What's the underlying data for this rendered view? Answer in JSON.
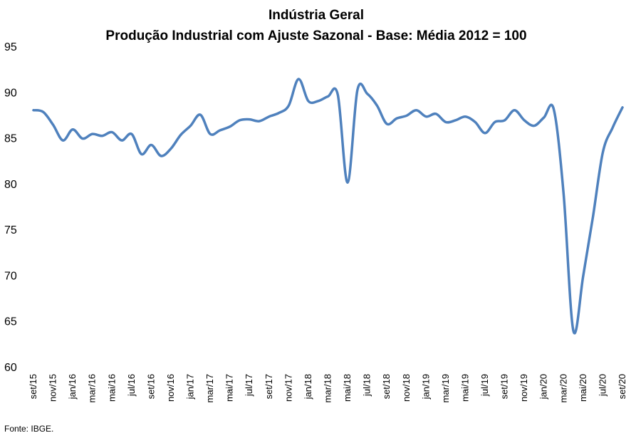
{
  "chart_data": {
    "type": "line",
    "title": "Indústria Geral",
    "subtitle": "Produção Industrial com Ajuste Sazonal - Base: Média 2012 = 100",
    "xlabel": "",
    "ylabel": "",
    "ylim": [
      60,
      95
    ],
    "yticks": [
      60,
      65,
      70,
      75,
      80,
      85,
      90,
      95
    ],
    "grid": false,
    "legend": "none",
    "line_color": "#4F81BD",
    "x_labels": [
      "set/15",
      "nov/15",
      "jan/16",
      "mar/16",
      "mai/16",
      "jul/16",
      "set/16",
      "nov/16",
      "jan/17",
      "mar/17",
      "mai/17",
      "jul/17",
      "set/17",
      "nov/17",
      "jan/18",
      "mar/18",
      "mai/18",
      "jul/18",
      "set/18",
      "nov/18",
      "jan/19",
      "mar/19",
      "mai/19",
      "jul/19",
      "set/19",
      "nov/19",
      "jan/20",
      "mar/20",
      "mai/20",
      "jul/20",
      "set/20"
    ],
    "x": [
      "set/15",
      "out/15",
      "nov/15",
      "dez/15",
      "jan/16",
      "fev/16",
      "mar/16",
      "abr/16",
      "mai/16",
      "jun/16",
      "jul/16",
      "ago/16",
      "set/16",
      "out/16",
      "nov/16",
      "dez/16",
      "jan/17",
      "fev/17",
      "mar/17",
      "abr/17",
      "mai/17",
      "jun/17",
      "jul/17",
      "ago/17",
      "set/17",
      "out/17",
      "nov/17",
      "dez/17",
      "jan/18",
      "fev/18",
      "mar/18",
      "abr/18",
      "mai/18",
      "jun/18",
      "jul/18",
      "ago/18",
      "set/18",
      "out/18",
      "nov/18",
      "dez/18",
      "jan/19",
      "fev/19",
      "mar/19",
      "abr/19",
      "mai/19",
      "jun/19",
      "jul/19",
      "ago/19",
      "set/19",
      "out/19",
      "nov/19",
      "dez/19",
      "jan/20",
      "fev/20",
      "mar/20",
      "abr/20",
      "mai/20",
      "jun/20",
      "jul/20",
      "ago/20",
      "set/20"
    ],
    "values": [
      88.1,
      87.9,
      86.5,
      84.8,
      86.0,
      85.0,
      85.5,
      85.3,
      85.7,
      84.8,
      85.5,
      83.3,
      84.3,
      83.1,
      83.9,
      85.4,
      86.4,
      87.6,
      85.5,
      85.9,
      86.3,
      87.0,
      87.1,
      86.9,
      87.4,
      87.8,
      88.6,
      91.5,
      89.1,
      89.1,
      89.6,
      89.8,
      80.2,
      90.3,
      89.9,
      88.6,
      86.6,
      87.2,
      87.5,
      88.1,
      87.4,
      87.7,
      86.8,
      87.0,
      87.4,
      86.8,
      85.6,
      86.8,
      87.0,
      88.1,
      87.0,
      86.4,
      87.3,
      88.2,
      79.0,
      64.0,
      70.0,
      76.5,
      83.5,
      86.2,
      88.4
    ]
  },
  "source": "Fonte: IBGE."
}
